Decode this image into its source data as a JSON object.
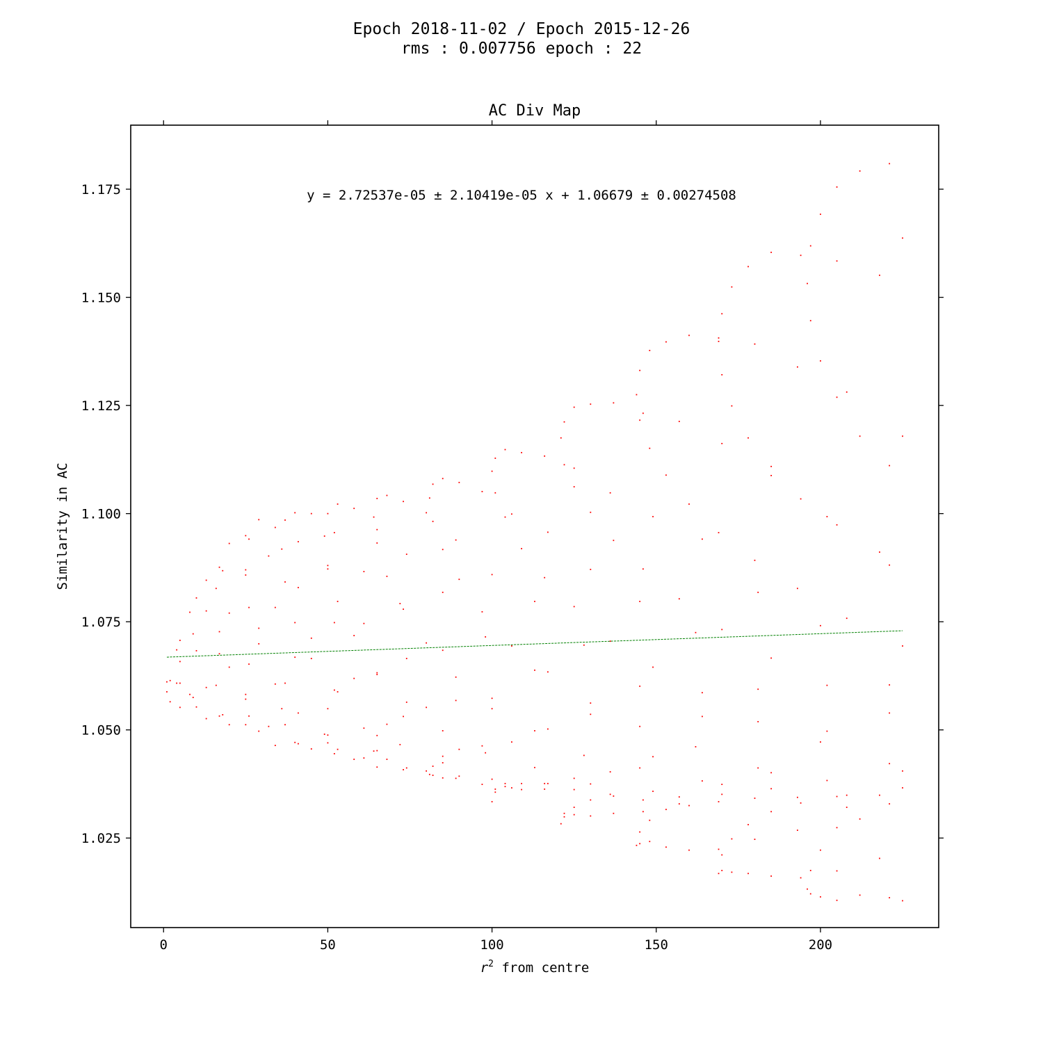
{
  "figure": {
    "suptitle_line1": "Epoch 2018-11-02 / Epoch 2015-12-26",
    "suptitle_line2": "rms : 0.007756 epoch : 22"
  },
  "colors": {
    "points": "#ff0000",
    "fit_line": "#008000",
    "axes": "#000000",
    "background": "#ffffff"
  },
  "chart_data": {
    "type": "scatter",
    "title": "AC Div Map",
    "xlabel": "$r^2$ from centre",
    "xlabel_base": "r",
    "xlabel_sup": "2",
    "xlabel_rest": " from centre",
    "ylabel": "Similarity in AC",
    "xlim": [
      -10,
      236
    ],
    "ylim": [
      1.0043,
      1.1898
    ],
    "xticks": [
      0,
      50,
      100,
      150,
      200
    ],
    "xtick_labels": [
      "0",
      "50",
      "100",
      "150",
      "200"
    ],
    "yticks": [
      1.025,
      1.05,
      1.075,
      1.1,
      1.125,
      1.15,
      1.175
    ],
    "ytick_labels": [
      "1.025",
      "1.050",
      "1.075",
      "1.100",
      "1.125",
      "1.150",
      "1.175"
    ],
    "grid": false,
    "fit": {
      "annotation": "y = 2.72537e-05 ± 2.10419e-05 x + 1.06679 ± 0.00274508",
      "slope": 2.72537e-05,
      "intercept": 1.06679,
      "x_range": [
        1,
        225
      ],
      "style": "dashed"
    },
    "points": [
      [
        1,
        1.0611
      ],
      [
        1,
        1.0588
      ],
      [
        2,
        1.0614
      ],
      [
        2,
        1.0565
      ],
      [
        4,
        1.0608
      ],
      [
        4,
        1.0685
      ],
      [
        5,
        1.0608
      ],
      [
        5,
        1.0658
      ],
      [
        5,
        1.0552
      ],
      [
        5,
        1.0707
      ],
      [
        8,
        1.0772
      ],
      [
        8,
        1.0582
      ],
      [
        9,
        1.0575
      ],
      [
        9,
        1.0722
      ],
      [
        10,
        1.0683
      ],
      [
        10,
        1.0553
      ],
      [
        10,
        1.0805
      ],
      [
        13,
        1.0775
      ],
      [
        13,
        1.0846
      ],
      [
        13,
        1.0598
      ],
      [
        13,
        1.0526
      ],
      [
        16,
        1.0827
      ],
      [
        16,
        1.0603
      ],
      [
        17,
        1.0676
      ],
      [
        17,
        1.0532
      ],
      [
        17,
        1.0727
      ],
      [
        17,
        1.0876
      ],
      [
        18,
        1.0868
      ],
      [
        18,
        1.0535
      ],
      [
        20,
        1.0645
      ],
      [
        20,
        1.0512
      ],
      [
        20,
        1.0931
      ],
      [
        20,
        1.077
      ],
      [
        25,
        1.0949
      ],
      [
        25,
        1.087
      ],
      [
        25,
        1.0858
      ],
      [
        25,
        1.0582
      ],
      [
        25,
        1.0571
      ],
      [
        25,
        1.0512
      ],
      [
        26,
        1.0783
      ],
      [
        26,
        1.0652
      ],
      [
        26,
        1.0532
      ],
      [
        26,
        1.0941
      ],
      [
        29,
        1.0986
      ],
      [
        29,
        1.0735
      ],
      [
        29,
        1.0699
      ],
      [
        29,
        1.0497
      ],
      [
        32,
        1.0902
      ],
      [
        32,
        1.0508
      ],
      [
        34,
        1.0968
      ],
      [
        34,
        1.0783
      ],
      [
        34,
        1.0606
      ],
      [
        34,
        1.0464
      ],
      [
        36,
        1.0918
      ],
      [
        36,
        1.0549
      ],
      [
        37,
        1.0985
      ],
      [
        37,
        1.0842
      ],
      [
        37,
        1.0608
      ],
      [
        37,
        1.0512
      ],
      [
        40,
        1.1002
      ],
      [
        40,
        1.0748
      ],
      [
        40,
        1.0668
      ],
      [
        40,
        1.0471
      ],
      [
        41,
        1.0935
      ],
      [
        41,
        1.0829
      ],
      [
        41,
        1.0539
      ],
      [
        41,
        1.0468
      ],
      [
        45,
        1.1
      ],
      [
        45,
        1.0712
      ],
      [
        45,
        1.0665
      ],
      [
        45,
        1.0456
      ],
      [
        49,
        1.0948
      ],
      [
        49,
        1.049
      ],
      [
        50,
        1.1
      ],
      [
        50,
        1.0872
      ],
      [
        50,
        1.088
      ],
      [
        50,
        1.0549
      ],
      [
        50,
        1.0488
      ],
      [
        50,
        1.047
      ],
      [
        52,
        1.0956
      ],
      [
        52,
        1.0748
      ],
      [
        52,
        1.0592
      ],
      [
        52,
        1.0445
      ],
      [
        53,
        1.1022
      ],
      [
        53,
        1.0797
      ],
      [
        53,
        1.0588
      ],
      [
        53,
        1.0455
      ],
      [
        58,
        1.1012
      ],
      [
        58,
        1.0718
      ],
      [
        58,
        1.0619
      ],
      [
        58,
        1.0432
      ],
      [
        61,
        1.0866
      ],
      [
        61,
        1.0746
      ],
      [
        61,
        1.0504
      ],
      [
        61,
        1.0435
      ],
      [
        64,
        1.0992
      ],
      [
        64,
        1.0451
      ],
      [
        65,
        1.1035
      ],
      [
        65,
        1.0963
      ],
      [
        65,
        1.0932
      ],
      [
        65,
        1.0632
      ],
      [
        65,
        1.0628
      ],
      [
        65,
        1.0487
      ],
      [
        65,
        1.0452
      ],
      [
        65,
        1.0414
      ],
      [
        68,
        1.1042
      ],
      [
        68,
        1.0855
      ],
      [
        68,
        1.0513
      ],
      [
        68,
        1.0432
      ],
      [
        72,
        1.0792
      ],
      [
        72,
        1.0466
      ],
      [
        73,
        1.1028
      ],
      [
        73,
        1.0779
      ],
      [
        73,
        1.0531
      ],
      [
        73,
        1.0408
      ],
      [
        74,
        1.0906
      ],
      [
        74,
        1.0665
      ],
      [
        74,
        1.0564
      ],
      [
        74,
        1.0412
      ],
      [
        80,
        1.1002
      ],
      [
        80,
        1.0701
      ],
      [
        80,
        1.0552
      ],
      [
        80,
        1.0405
      ],
      [
        81,
        1.1036
      ],
      [
        81,
        1.0397
      ],
      [
        82,
        1.1068
      ],
      [
        82,
        1.0982
      ],
      [
        82,
        1.0416
      ],
      [
        82,
        1.0395
      ],
      [
        85,
        1.1081
      ],
      [
        85,
        1.0917
      ],
      [
        85,
        1.0818
      ],
      [
        85,
        1.0684
      ],
      [
        85,
        1.0498
      ],
      [
        85,
        1.0439
      ],
      [
        85,
        1.0424
      ],
      [
        85,
        1.0389
      ],
      [
        89,
        1.0939
      ],
      [
        89,
        1.0622
      ],
      [
        89,
        1.0568
      ],
      [
        89,
        1.0388
      ],
      [
        90,
        1.1072
      ],
      [
        90,
        1.0848
      ],
      [
        90,
        1.0455
      ],
      [
        90,
        1.0393
      ],
      [
        97,
        1.1051
      ],
      [
        97,
        1.0773
      ],
      [
        97,
        1.0463
      ],
      [
        97,
        1.0374
      ],
      [
        98,
        1.0715
      ],
      [
        98,
        1.0447
      ],
      [
        100,
        1.1098
      ],
      [
        100,
        1.0859
      ],
      [
        100,
        1.0573
      ],
      [
        100,
        1.0549
      ],
      [
        100,
        1.0386
      ],
      [
        100,
        1.0334
      ],
      [
        101,
        1.1128
      ],
      [
        101,
        1.1048
      ],
      [
        101,
        1.0363
      ],
      [
        101,
        1.0356
      ],
      [
        104,
        1.1148
      ],
      [
        104,
        1.0992
      ],
      [
        104,
        1.0376
      ],
      [
        104,
        1.0369
      ],
      [
        106,
        1.0999
      ],
      [
        106,
        1.0694
      ],
      [
        106,
        1.0472
      ],
      [
        106,
        1.0366
      ],
      [
        109,
        1.1141
      ],
      [
        109,
        1.0919
      ],
      [
        109,
        1.0376
      ],
      [
        109,
        1.0362
      ],
      [
        113,
        1.0797
      ],
      [
        113,
        1.0638
      ],
      [
        113,
        1.0498
      ],
      [
        113,
        1.0413
      ],
      [
        116,
        1.1133
      ],
      [
        116,
        1.0852
      ],
      [
        116,
        1.0376
      ],
      [
        116,
        1.0363
      ],
      [
        117,
        1.0957
      ],
      [
        117,
        1.0634
      ],
      [
        117,
        1.0502
      ],
      [
        117,
        1.0376
      ],
      [
        121,
        1.1175
      ],
      [
        121,
        1.0283
      ],
      [
        122,
        1.1212
      ],
      [
        122,
        1.1113
      ],
      [
        122,
        1.0307
      ],
      [
        122,
        1.0299
      ],
      [
        125,
        1.1246
      ],
      [
        125,
        1.1105
      ],
      [
        125,
        1.1062
      ],
      [
        125,
        1.0785
      ],
      [
        125,
        1.0388
      ],
      [
        125,
        1.0362
      ],
      [
        125,
        1.0321
      ],
      [
        125,
        1.0304
      ],
      [
        128,
        1.0696
      ],
      [
        128,
        1.0441
      ],
      [
        130,
        1.1253
      ],
      [
        130,
        1.1003
      ],
      [
        130,
        1.0871
      ],
      [
        130,
        1.0562
      ],
      [
        130,
        1.0536
      ],
      [
        130,
        1.0375
      ],
      [
        130,
        1.0338
      ],
      [
        130,
        1.0301
      ],
      [
        136,
        1.1048
      ],
      [
        136,
        1.0705
      ],
      [
        136,
        1.0403
      ],
      [
        136,
        1.0351
      ],
      [
        137,
        1.1256
      ],
      [
        137,
        1.0938
      ],
      [
        137,
        1.0347
      ],
      [
        137,
        1.0307
      ],
      [
        144,
        1.1275
      ],
      [
        144,
        1.0233
      ],
      [
        145,
        1.1331
      ],
      [
        145,
        1.1216
      ],
      [
        145,
        1.0797
      ],
      [
        145,
        1.0601
      ],
      [
        145,
        1.0508
      ],
      [
        145,
        1.0412
      ],
      [
        145,
        1.0264
      ],
      [
        145,
        1.0237
      ],
      [
        146,
        1.1232
      ],
      [
        146,
        1.0872
      ],
      [
        146,
        1.0338
      ],
      [
        146,
        1.0311
      ],
      [
        148,
        1.1377
      ],
      [
        148,
        1.1151
      ],
      [
        148,
        1.0291
      ],
      [
        148,
        1.0242
      ],
      [
        149,
        1.0993
      ],
      [
        149,
        1.0645
      ],
      [
        149,
        1.0438
      ],
      [
        149,
        1.0358
      ],
      [
        153,
        1.1397
      ],
      [
        153,
        1.1089
      ],
      [
        153,
        1.0316
      ],
      [
        153,
        1.0229
      ],
      [
        157,
        1.1213
      ],
      [
        157,
        1.0803
      ],
      [
        157,
        1.0345
      ],
      [
        157,
        1.0329
      ],
      [
        160,
        1.1412
      ],
      [
        160,
        1.1022
      ],
      [
        160,
        1.0325
      ],
      [
        160,
        1.0222
      ],
      [
        162,
        1.0725
      ],
      [
        162,
        1.0461
      ],
      [
        164,
        1.0941
      ],
      [
        164,
        1.0586
      ],
      [
        164,
        1.0531
      ],
      [
        164,
        1.0382
      ],
      [
        169,
        1.1406
      ],
      [
        169,
        1.1398
      ],
      [
        169,
        1.0956
      ],
      [
        169,
        1.0334
      ],
      [
        169,
        1.0224
      ],
      [
        169,
        1.0168
      ],
      [
        170,
        1.1462
      ],
      [
        170,
        1.1321
      ],
      [
        170,
        1.1162
      ],
      [
        170,
        1.0732
      ],
      [
        170,
        1.0374
      ],
      [
        170,
        1.0351
      ],
      [
        170,
        1.0211
      ],
      [
        170,
        1.0175
      ],
      [
        173,
        1.1524
      ],
      [
        173,
        1.1249
      ],
      [
        173,
        1.0248
      ],
      [
        173,
        1.0171
      ],
      [
        178,
        1.1571
      ],
      [
        178,
        1.1175
      ],
      [
        178,
        1.0281
      ],
      [
        178,
        1.0168
      ],
      [
        180,
        1.1392
      ],
      [
        180,
        1.0892
      ],
      [
        180,
        1.0342
      ],
      [
        180,
        1.0247
      ],
      [
        181,
        1.0818
      ],
      [
        181,
        1.0594
      ],
      [
        181,
        1.0519
      ],
      [
        181,
        1.0412
      ],
      [
        185,
        1.1604
      ],
      [
        185,
        1.1109
      ],
      [
        185,
        1.1088
      ],
      [
        185,
        1.0666
      ],
      [
        185,
        1.0401
      ],
      [
        185,
        1.0364
      ],
      [
        185,
        1.0311
      ],
      [
        185,
        1.0162
      ],
      [
        193,
        1.1339
      ],
      [
        193,
        1.0827
      ],
      [
        193,
        1.0344
      ],
      [
        193,
        1.0268
      ],
      [
        194,
        1.1597
      ],
      [
        194,
        1.1034
      ],
      [
        194,
        1.0331
      ],
      [
        194,
        1.0158
      ],
      [
        196,
        1.1532
      ],
      [
        196,
        1.0132
      ],
      [
        197,
        1.1619
      ],
      [
        197,
        1.1446
      ],
      [
        197,
        1.0175
      ],
      [
        197,
        1.0121
      ],
      [
        200,
        1.1692
      ],
      [
        200,
        1.1353
      ],
      [
        200,
        1.0741
      ],
      [
        200,
        1.0472
      ],
      [
        200,
        1.0222
      ],
      [
        200,
        1.0114
      ],
      [
        202,
        1.0993
      ],
      [
        202,
        1.0603
      ],
      [
        202,
        1.0497
      ],
      [
        202,
        1.0383
      ],
      [
        205,
        1.1755
      ],
      [
        205,
        1.1584
      ],
      [
        205,
        1.1269
      ],
      [
        205,
        1.0974
      ],
      [
        205,
        1.0346
      ],
      [
        205,
        1.0274
      ],
      [
        205,
        1.0174
      ],
      [
        205,
        1.0106
      ],
      [
        208,
        1.1281
      ],
      [
        208,
        1.0758
      ],
      [
        208,
        1.0349
      ],
      [
        208,
        1.0321
      ],
      [
        212,
        1.1792
      ],
      [
        212,
        1.1179
      ],
      [
        212,
        1.0294
      ],
      [
        212,
        1.0118
      ],
      [
        218,
        1.1551
      ],
      [
        218,
        1.0911
      ],
      [
        218,
        1.0349
      ],
      [
        218,
        1.0203
      ],
      [
        221,
        1.1809
      ],
      [
        221,
        1.1111
      ],
      [
        221,
        1.0881
      ],
      [
        221,
        1.0604
      ],
      [
        221,
        1.0539
      ],
      [
        221,
        1.0422
      ],
      [
        221,
        1.0329
      ],
      [
        221,
        1.0112
      ],
      [
        225,
        1.1637
      ],
      [
        225,
        1.1179
      ],
      [
        225,
        1.0694
      ],
      [
        225,
        1.0405
      ],
      [
        225,
        1.0366
      ],
      [
        225,
        1.0105
      ]
    ]
  }
}
